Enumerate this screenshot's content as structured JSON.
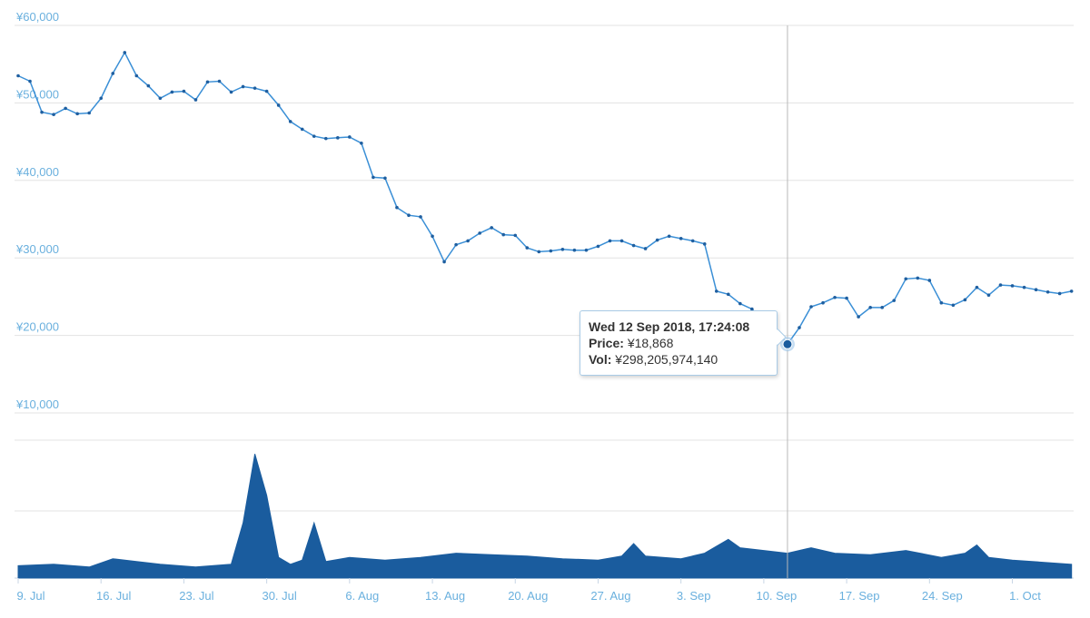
{
  "chart_data": [
    {
      "type": "line",
      "y_unit": "JPY",
      "y_tick_labels": [
        "¥60,000",
        "¥50,000",
        "¥40,000",
        "¥30,000",
        "¥20,000",
        "¥10,000"
      ],
      "y_ticks": [
        60000,
        50000,
        40000,
        30000,
        20000,
        10000
      ],
      "ylim": [
        10000,
        60000
      ],
      "x_range": [
        "2018-07-09",
        "2018-10-06"
      ],
      "grid": true,
      "series": [
        {
          "color": "#1f5fa0",
          "points": [
            [
              "2018-07-09",
              53500
            ],
            [
              "2018-07-10",
              52800
            ],
            [
              "2018-07-11",
              48800
            ],
            [
              "2018-07-12",
              48500
            ],
            [
              "2018-07-13",
              49300
            ],
            [
              "2018-07-14",
              48600
            ],
            [
              "2018-07-15",
              48700
            ],
            [
              "2018-07-16",
              50600
            ],
            [
              "2018-07-17",
              53800
            ],
            [
              "2018-07-18",
              56500
            ],
            [
              "2018-07-19",
              53500
            ],
            [
              "2018-07-20",
              52200
            ],
            [
              "2018-07-21",
              50600
            ],
            [
              "2018-07-22",
              51400
            ],
            [
              "2018-07-23",
              51500
            ],
            [
              "2018-07-24",
              50400
            ],
            [
              "2018-07-25",
              52700
            ],
            [
              "2018-07-26",
              52800
            ],
            [
              "2018-07-27",
              51400
            ],
            [
              "2018-07-28",
              52100
            ],
            [
              "2018-07-29",
              51900
            ],
            [
              "2018-07-30",
              51500
            ],
            [
              "2018-07-31",
              49700
            ],
            [
              "2018-08-01",
              47600
            ],
            [
              "2018-08-02",
              46600
            ],
            [
              "2018-08-03",
              45700
            ],
            [
              "2018-08-04",
              45400
            ],
            [
              "2018-08-05",
              45500
            ],
            [
              "2018-08-06",
              45600
            ],
            [
              "2018-08-07",
              44800
            ],
            [
              "2018-08-08",
              40400
            ],
            [
              "2018-08-09",
              40300
            ],
            [
              "2018-08-10",
              36500
            ],
            [
              "2018-08-11",
              35500
            ],
            [
              "2018-08-12",
              35300
            ],
            [
              "2018-08-13",
              32800
            ],
            [
              "2018-08-14",
              29500
            ],
            [
              "2018-08-15",
              31700
            ],
            [
              "2018-08-16",
              32200
            ],
            [
              "2018-08-17",
              33200
            ],
            [
              "2018-08-18",
              33900
            ],
            [
              "2018-08-19",
              33000
            ],
            [
              "2018-08-20",
              32900
            ],
            [
              "2018-08-21",
              31300
            ],
            [
              "2018-08-22",
              30800
            ],
            [
              "2018-08-23",
              30900
            ],
            [
              "2018-08-24",
              31100
            ],
            [
              "2018-08-25",
              31000
            ],
            [
              "2018-08-26",
              31000
            ],
            [
              "2018-08-27",
              31500
            ],
            [
              "2018-08-28",
              32200
            ],
            [
              "2018-08-29",
              32200
            ],
            [
              "2018-08-30",
              31600
            ],
            [
              "2018-08-31",
              31200
            ],
            [
              "2018-09-01",
              32300
            ],
            [
              "2018-09-02",
              32800
            ],
            [
              "2018-09-03",
              32500
            ],
            [
              "2018-09-04",
              32200
            ],
            [
              "2018-09-05",
              31800
            ],
            [
              "2018-09-06",
              25700
            ],
            [
              "2018-09-07",
              25300
            ],
            [
              "2018-09-08",
              24100
            ],
            [
              "2018-09-09",
              23400
            ],
            [
              "2018-09-10",
              21600
            ],
            [
              "2018-09-11",
              20700
            ],
            [
              "2018-09-12",
              18868
            ],
            [
              "2018-09-13",
              21000
            ],
            [
              "2018-09-14",
              23700
            ],
            [
              "2018-09-15",
              24200
            ],
            [
              "2018-09-16",
              24900
            ],
            [
              "2018-09-17",
              24800
            ],
            [
              "2018-09-18",
              22400
            ],
            [
              "2018-09-19",
              23600
            ],
            [
              "2018-09-20",
              23600
            ],
            [
              "2018-09-21",
              24500
            ],
            [
              "2018-09-22",
              27300
            ],
            [
              "2018-09-23",
              27400
            ],
            [
              "2018-09-24",
              27100
            ],
            [
              "2018-09-25",
              24200
            ],
            [
              "2018-09-26",
              23900
            ],
            [
              "2018-09-27",
              24600
            ],
            [
              "2018-09-28",
              26200
            ],
            [
              "2018-09-29",
              25200
            ],
            [
              "2018-09-30",
              26500
            ],
            [
              "2018-10-01",
              26400
            ],
            [
              "2018-10-02",
              26200
            ],
            [
              "2018-10-03",
              25900
            ],
            [
              "2018-10-04",
              25600
            ],
            [
              "2018-10-05",
              25400
            ],
            [
              "2018-10-06",
              25700
            ]
          ]
        }
      ]
    },
    {
      "type": "area",
      "x_tick_labels": [
        "9. Jul",
        "16. Jul",
        "23. Jul",
        "30. Jul",
        "6. Aug",
        "13. Aug",
        "20. Aug",
        "27. Aug",
        "3. Sep",
        "10. Sep",
        "17. Sep",
        "24. Sep",
        "1. Oct"
      ],
      "x_ticks": [
        "2018-07-09",
        "2018-07-16",
        "2018-07-23",
        "2018-07-30",
        "2018-08-06",
        "2018-08-13",
        "2018-08-20",
        "2018-08-27",
        "2018-09-03",
        "2018-09-10",
        "2018-09-17",
        "2018-09-24",
        "2018-10-01"
      ],
      "ylim": [
        0,
        100
      ],
      "grid": true,
      "series": [
        {
          "color": "#1a5c9e",
          "relative_volume": [
            [
              "2018-07-09",
              9
            ],
            [
              "2018-07-12",
              10
            ],
            [
              "2018-07-15",
              8
            ],
            [
              "2018-07-17",
              14
            ],
            [
              "2018-07-19",
              12
            ],
            [
              "2018-07-21",
              10
            ],
            [
              "2018-07-24",
              8
            ],
            [
              "2018-07-27",
              10
            ],
            [
              "2018-07-28",
              40
            ],
            [
              "2018-07-29",
              90
            ],
            [
              "2018-07-30",
              60
            ],
            [
              "2018-07-31",
              15
            ],
            [
              "2018-08-01",
              10
            ],
            [
              "2018-08-02",
              13
            ],
            [
              "2018-08-03",
              40
            ],
            [
              "2018-08-04",
              12
            ],
            [
              "2018-08-06",
              15
            ],
            [
              "2018-08-09",
              13
            ],
            [
              "2018-08-12",
              15
            ],
            [
              "2018-08-15",
              18
            ],
            [
              "2018-08-18",
              17
            ],
            [
              "2018-08-21",
              16
            ],
            [
              "2018-08-24",
              14
            ],
            [
              "2018-08-27",
              13
            ],
            [
              "2018-08-29",
              16
            ],
            [
              "2018-08-30",
              25
            ],
            [
              "2018-08-31",
              16
            ],
            [
              "2018-09-03",
              14
            ],
            [
              "2018-09-05",
              18
            ],
            [
              "2018-09-07",
              28
            ],
            [
              "2018-09-08",
              22
            ],
            [
              "2018-09-10",
              20
            ],
            [
              "2018-09-12",
              18
            ],
            [
              "2018-09-14",
              22
            ],
            [
              "2018-09-16",
              18
            ],
            [
              "2018-09-19",
              17
            ],
            [
              "2018-09-22",
              20
            ],
            [
              "2018-09-25",
              15
            ],
            [
              "2018-09-27",
              18
            ],
            [
              "2018-09-28",
              24
            ],
            [
              "2018-09-29",
              15
            ],
            [
              "2018-10-01",
              13
            ],
            [
              "2018-10-06",
              10
            ]
          ]
        }
      ]
    }
  ],
  "crosshair_date": "2018-09-12",
  "tooltip": {
    "title": "Wed 12 Sep 2018, 17:24:08",
    "price_label": "Price:",
    "price_value": "¥18,868",
    "vol_label": "Vol:",
    "vol_value": "¥298,205,974,140"
  }
}
